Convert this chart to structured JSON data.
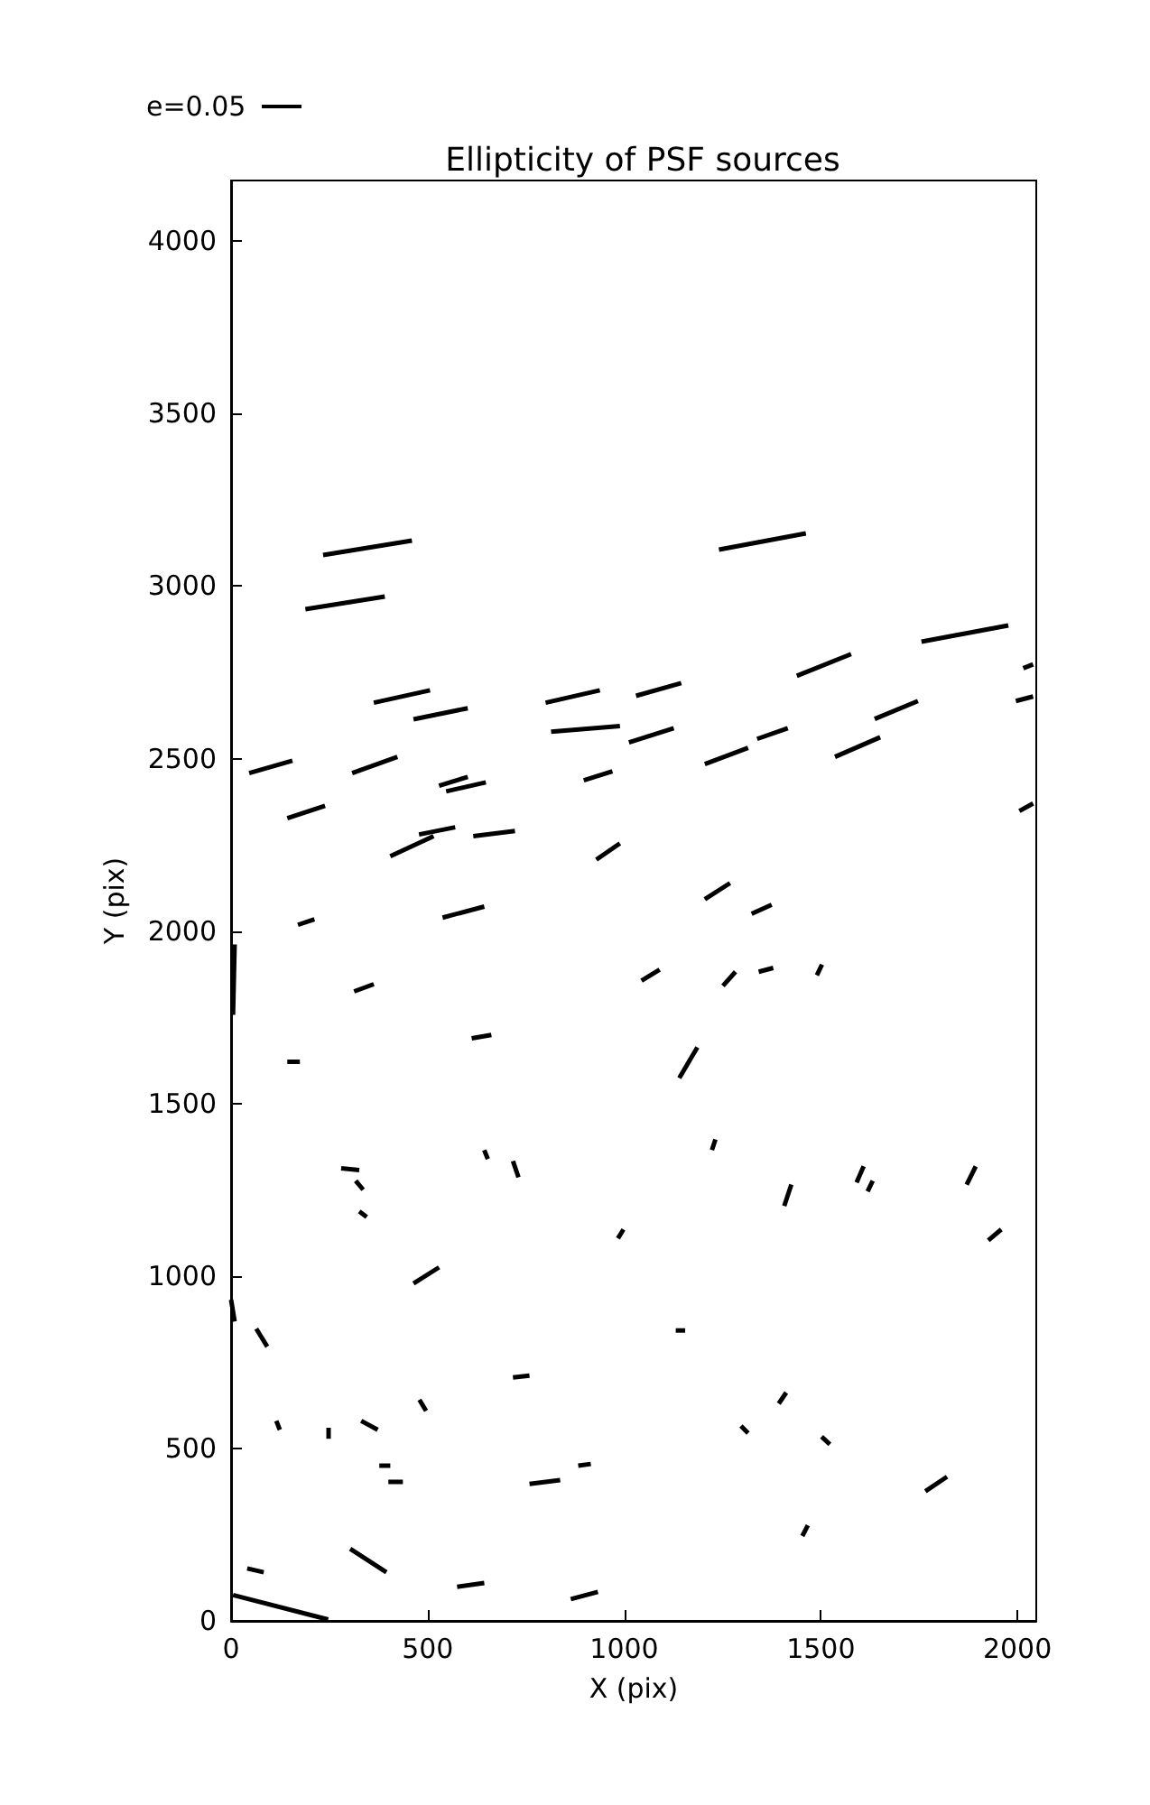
{
  "chart_data": {
    "type": "line",
    "title": "Ellipticity of PSF sources",
    "xlabel": "X (pix)",
    "ylabel": "Y (pix)",
    "annotations": [
      "e=0.05"
    ],
    "xlim": [
      0,
      2048
    ],
    "ylim": [
      0,
      4176
    ],
    "xticks": [
      0,
      500,
      1000,
      1500,
      2000
    ],
    "yticks": [
      0,
      500,
      1000,
      1500,
      2000,
      2500,
      3000,
      3500,
      4000
    ],
    "grid": false,
    "series": [
      {
        "color": "#000000",
        "x": [
          234,
          460
        ],
        "values": [
          3090,
          3132
        ]
      },
      {
        "color": "#000000",
        "x": [
          189,
          391
        ],
        "values": [
          2933,
          2970
        ]
      },
      {
        "color": "#000000",
        "x": [
          1241,
          1462
        ],
        "values": [
          3106,
          3153
        ]
      },
      {
        "color": "#000000",
        "x": [
          1756,
          1977
        ],
        "values": [
          2839,
          2886
        ]
      },
      {
        "color": "#000000",
        "x": [
          363,
          506
        ],
        "values": [
          2662,
          2698
        ]
      },
      {
        "color": "#000000",
        "x": [
          464,
          602
        ],
        "values": [
          2614,
          2646
        ]
      },
      {
        "color": "#000000",
        "x": [
          800,
          938
        ],
        "values": [
          2662,
          2698
        ]
      },
      {
        "color": "#000000",
        "x": [
          1030,
          1145
        ],
        "values": [
          2682,
          2719
        ]
      },
      {
        "color": "#000000",
        "x": [
          1439,
          1577
        ],
        "values": [
          2740,
          2803
        ]
      },
      {
        "color": "#000000",
        "x": [
          814,
          989
        ],
        "values": [
          2578,
          2594
        ]
      },
      {
        "color": "#000000",
        "x": [
          1012,
          1126
        ],
        "values": [
          2547,
          2588
        ]
      },
      {
        "color": "#000000",
        "x": [
          1205,
          1315
        ],
        "values": [
          2484,
          2531
        ]
      },
      {
        "color": "#000000",
        "x": [
          1338,
          1416
        ],
        "values": [
          2557,
          2588
        ]
      },
      {
        "color": "#000000",
        "x": [
          1536,
          1651
        ],
        "values": [
          2505,
          2562
        ]
      },
      {
        "color": "#000000",
        "x": [
          1637,
          1747
        ],
        "values": [
          2615,
          2667
        ]
      },
      {
        "color": "#000000",
        "x": [
          46,
          156
        ],
        "values": [
          2458,
          2494
        ]
      },
      {
        "color": "#000000",
        "x": [
          308,
          423
        ],
        "values": [
          2458,
          2505
        ]
      },
      {
        "color": "#000000",
        "x": [
          143,
          239
        ],
        "values": [
          2327,
          2363
        ]
      },
      {
        "color": "#000000",
        "x": [
          529,
          602
        ],
        "values": [
          2421,
          2447
        ]
      },
      {
        "color": "#000000",
        "x": [
          547,
          648
        ],
        "values": [
          2405,
          2431
        ]
      },
      {
        "color": "#000000",
        "x": [
          897,
          970
        ],
        "values": [
          2437,
          2463
        ]
      },
      {
        "color": "#000000",
        "x": [
          405,
          515
        ],
        "values": [
          2217,
          2275
        ]
      },
      {
        "color": "#000000",
        "x": [
          478,
          570
        ],
        "values": [
          2280,
          2301
        ]
      },
      {
        "color": "#000000",
        "x": [
          616,
          722
        ],
        "values": [
          2275,
          2290
        ]
      },
      {
        "color": "#000000",
        "x": [
          929,
          989
        ],
        "values": [
          2207,
          2254
        ]
      },
      {
        "color": "#000000",
        "x": [
          538,
          644
        ],
        "values": [
          2039,
          2071
        ]
      },
      {
        "color": "#000000",
        "x": [
          170,
          212
        ],
        "values": [
          2018,
          2034
        ]
      },
      {
        "color": "#000000",
        "x": [
          1205,
          1269
        ],
        "values": [
          2092,
          2139
        ]
      },
      {
        "color": "#000000",
        "x": [
          1324,
          1375
        ],
        "values": [
          2050,
          2076
        ]
      },
      {
        "color": "#000000",
        "x": [
          1044,
          1090
        ],
        "values": [
          1856,
          1888
        ]
      },
      {
        "color": "#000000",
        "x": [
          1251,
          1283
        ],
        "values": [
          1841,
          1882
        ]
      },
      {
        "color": "#000000",
        "x": [
          1342,
          1379
        ],
        "values": [
          1882,
          1893
        ]
      },
      {
        "color": "#000000",
        "x": [
          1490,
          1503
        ],
        "values": [
          1872,
          1903
        ]
      },
      {
        "color": "#000000",
        "x": [
          5,
          9
        ],
        "values": [
          1757,
          1961
        ]
      },
      {
        "color": "#000000",
        "x": [
          313,
          363
        ],
        "values": [
          1825,
          1846
        ]
      },
      {
        "color": "#000000",
        "x": [
          143,
          175
        ],
        "values": [
          1621,
          1621
        ]
      },
      {
        "color": "#000000",
        "x": [
          612,
          662
        ],
        "values": [
          1689,
          1699
        ]
      },
      {
        "color": "#000000",
        "x": [
          1140,
          1186
        ],
        "values": [
          1574,
          1663
        ]
      },
      {
        "color": "#000000",
        "x": [
          1223,
          1232
        ],
        "values": [
          1365,
          1396
        ]
      },
      {
        "color": "#000000",
        "x": [
          280,
          326
        ],
        "values": [
          1312,
          1307
        ]
      },
      {
        "color": "#000000",
        "x": [
          317,
          336
        ],
        "values": [
          1276,
          1250
        ]
      },
      {
        "color": "#000000",
        "x": [
          326,
          345
        ],
        "values": [
          1187,
          1171
        ]
      },
      {
        "color": "#000000",
        "x": [
          644,
          653
        ],
        "values": [
          1365,
          1339
        ]
      },
      {
        "color": "#000000",
        "x": [
          717,
          731
        ],
        "values": [
          1333,
          1286
        ]
      },
      {
        "color": "#000000",
        "x": [
          1407,
          1425
        ],
        "values": [
          1203,
          1265
        ]
      },
      {
        "color": "#000000",
        "x": [
          1591,
          1609
        ],
        "values": [
          1271,
          1318
        ]
      },
      {
        "color": "#000000",
        "x": [
          1619,
          1632
        ],
        "values": [
          1245,
          1276
        ]
      },
      {
        "color": "#000000",
        "x": [
          1871,
          1894
        ],
        "values": [
          1265,
          1318
        ]
      },
      {
        "color": "#000000",
        "x": [
          1926,
          1959
        ],
        "values": [
          1103,
          1135
        ]
      },
      {
        "color": "#000000",
        "x": [
          984,
          998
        ],
        "values": [
          1109,
          1135
        ]
      },
      {
        "color": "#000000",
        "x": [
          464,
          529
        ],
        "values": [
          978,
          1025
        ]
      },
      {
        "color": "#000000",
        "x": [
          0,
          9
        ],
        "values": [
          931,
          868
        ]
      },
      {
        "color": "#000000",
        "x": [
          64,
          92
        ],
        "values": [
          847,
          795
        ]
      },
      {
        "color": "#000000",
        "x": [
          1131,
          1155
        ],
        "values": [
          842,
          842
        ]
      },
      {
        "color": "#000000",
        "x": [
          717,
          759
        ],
        "values": [
          706,
          711
        ]
      },
      {
        "color": "#000000",
        "x": [
          115,
          124
        ],
        "values": [
          580,
          554
        ]
      },
      {
        "color": "#000000",
        "x": [
          331,
          373
        ],
        "values": [
          580,
          554
        ]
      },
      {
        "color": "#000000",
        "x": [
          479,
          496
        ],
        "values": [
          641,
          609
        ]
      },
      {
        "color": "#000000",
        "x": [
          248,
          248
        ],
        "values": [
          560,
          528
        ]
      },
      {
        "color": "#000000",
        "x": [
          1297,
          1315
        ],
        "values": [
          565,
          544
        ]
      },
      {
        "color": "#000000",
        "x": [
          1393,
          1412
        ],
        "values": [
          630,
          662
        ]
      },
      {
        "color": "#000000",
        "x": [
          1502,
          1523
        ],
        "values": [
          534,
          512
        ]
      },
      {
        "color": "#000000",
        "x": [
          377,
          405
        ],
        "values": [
          450,
          450
        ]
      },
      {
        "color": "#000000",
        "x": [
          400,
          437
        ],
        "values": [
          403,
          403
        ]
      },
      {
        "color": "#000000",
        "x": [
          759,
          837
        ],
        "values": [
          397,
          408
        ]
      },
      {
        "color": "#000000",
        "x": [
          883,
          915
        ],
        "values": [
          450,
          455
        ]
      },
      {
        "color": "#000000",
        "x": [
          1766,
          1821
        ],
        "values": [
          376,
          418
        ]
      },
      {
        "color": "#000000",
        "x": [
          1453,
          1467
        ],
        "values": [
          246,
          277
        ]
      },
      {
        "color": "#000000",
        "x": [
          41,
          83
        ],
        "values": [
          152,
          141
        ]
      },
      {
        "color": "#000000",
        "x": [
          303,
          395
        ],
        "values": [
          209,
          141
        ]
      },
      {
        "color": "#000000",
        "x": [
          575,
          644
        ],
        "values": [
          99,
          110
        ]
      },
      {
        "color": "#000000",
        "x": [
          864,
          933
        ],
        "values": [
          63,
          84
        ]
      },
      {
        "color": "#000000",
        "x": [
          5,
          247
        ],
        "values": [
          75,
          4
        ]
      },
      {
        "color": "#000000",
        "x": [
          1996,
          2040
        ],
        "values": [
          2667,
          2680
        ]
      },
      {
        "color": "#000000",
        "x": [
          2015,
          2040
        ],
        "values": [
          2762,
          2773
        ]
      },
      {
        "color": "#000000",
        "x": [
          2005,
          2040
        ],
        "values": [
          2348,
          2370
        ]
      }
    ]
  }
}
